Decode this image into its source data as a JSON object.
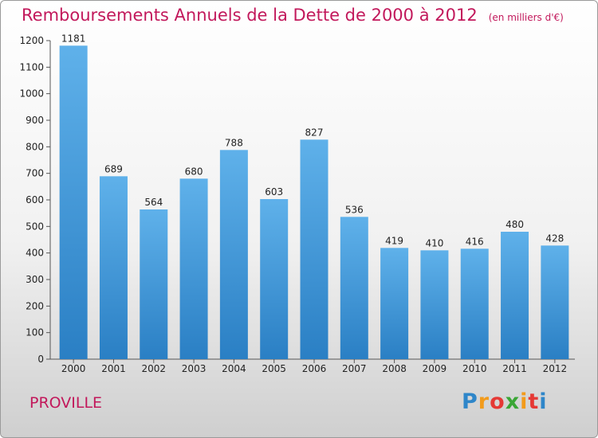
{
  "header": {
    "title": "Remboursements Annuels de la Dette de 2000 à 2012",
    "subtitle": "(en milliers d'€)"
  },
  "footer": {
    "commune": "PROVILLE",
    "logo_letters": [
      "P",
      "r",
      "o",
      "x",
      "i",
      "t",
      "i"
    ],
    "logo_colors": [
      "#2e86c9",
      "#f29b1b",
      "#e53935",
      "#3aa635",
      "#f29b1b",
      "#e53935",
      "#2e86c9"
    ]
  },
  "chart_data": {
    "type": "bar",
    "title": "Remboursements Annuels de la Dette de 2000 à 2012",
    "subtitle": "(en milliers d'€)",
    "categories": [
      "2000",
      "2001",
      "2002",
      "2003",
      "2004",
      "2005",
      "2006",
      "2007",
      "2008",
      "2009",
      "2010",
      "2011",
      "2012"
    ],
    "values": [
      1181,
      689,
      564,
      680,
      788,
      603,
      827,
      536,
      419,
      410,
      416,
      480,
      428
    ],
    "ylim": [
      0,
      1200
    ],
    "yticks": [
      0,
      100,
      200,
      300,
      400,
      500,
      600,
      700,
      800,
      900,
      1000,
      1100,
      1200
    ],
    "grid": false,
    "bar_color_light": "#5fb1ea",
    "bar_color_dark": "#2a7fc4"
  }
}
